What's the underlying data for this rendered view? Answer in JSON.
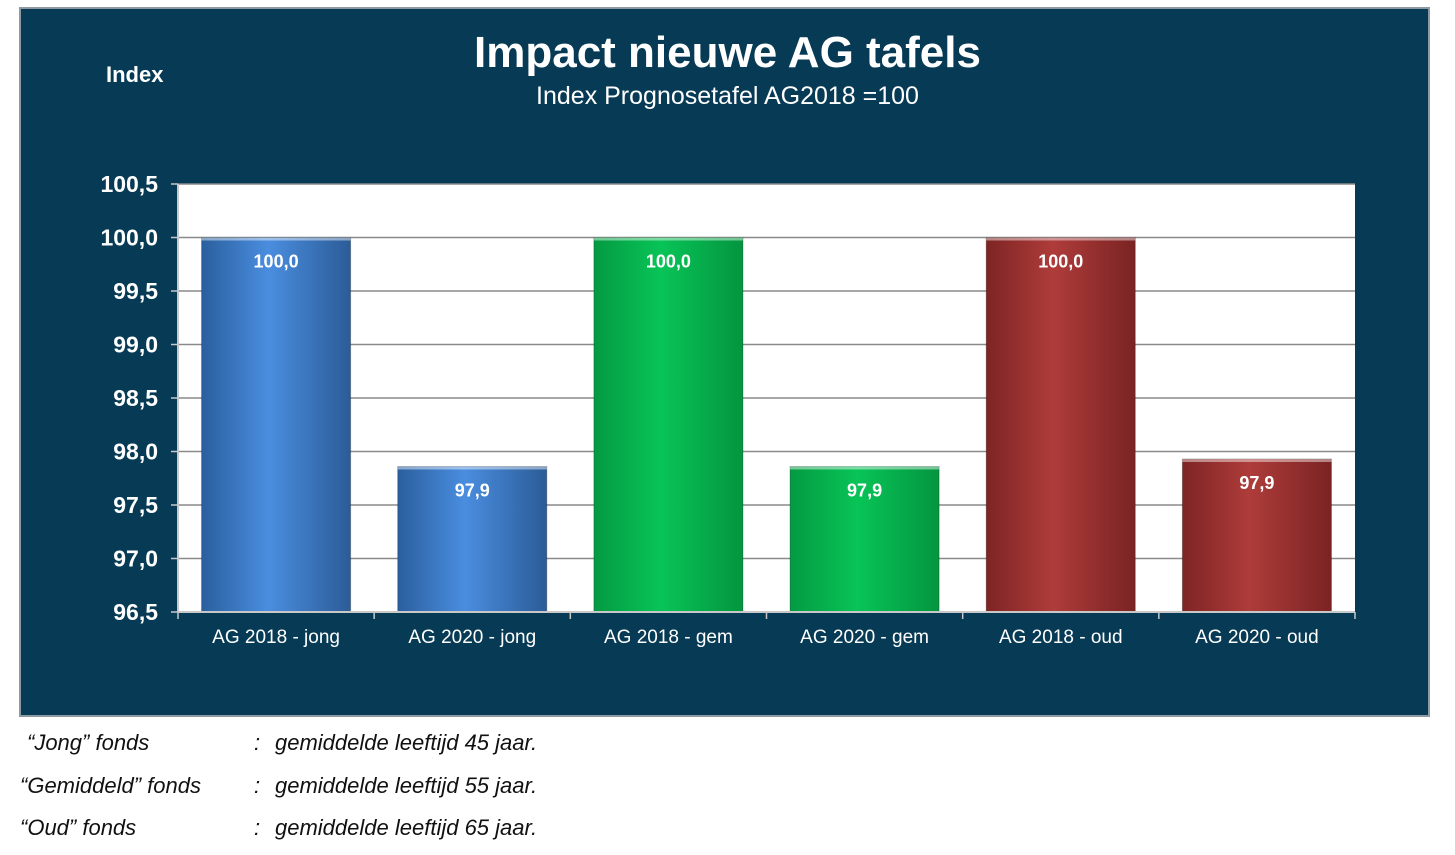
{
  "chart_data": {
    "type": "bar",
    "title": "Impact nieuwe AG tafels",
    "subtitle": "Index Prognosetafel AG2018 =100",
    "ylabel": "Index",
    "xlabel": "",
    "ylim": [
      96.5,
      100.5
    ],
    "yticks": [
      "100,5",
      "100,0",
      "99,5",
      "99,0",
      "98,5",
      "98,0",
      "97,5",
      "97,0",
      "96,5"
    ],
    "ytick_values": [
      100.5,
      100.0,
      99.5,
      99.0,
      98.5,
      98.0,
      97.5,
      97.0,
      96.5
    ],
    "categories": [
      "AG 2018 - jong",
      "AG 2020 - jong",
      "AG 2018 - gem",
      "AG 2020 - gem",
      "AG 2018 - oud",
      "AG 2020 - oud"
    ],
    "values": [
      100.0,
      97.86,
      100.0,
      97.86,
      100.0,
      97.93
    ],
    "value_labels": [
      "100,0",
      "97,9",
      "100,0",
      "97,9",
      "100,0",
      "97,9"
    ],
    "bar_colors": [
      "#3d7fd0",
      "#3d7fd0",
      "#06b84f",
      "#06b84f",
      "#a23535",
      "#a23535"
    ],
    "grid": true,
    "legend": "none"
  },
  "notes": [
    {
      "label": "“Jong” fonds",
      "sep": ":",
      "text": "gemiddelde leeftijd 45 jaar."
    },
    {
      "label": "“Gemiddeld” fonds",
      "sep": ":",
      "text": "gemiddelde leeftijd 55 jaar."
    },
    {
      "label": "“Oud” fonds",
      "sep": ":",
      "text": "gemiddelde leeftijd 65 jaar."
    }
  ],
  "colors": {
    "panel_background": "#073b55",
    "plot_background": "#ffffff"
  }
}
